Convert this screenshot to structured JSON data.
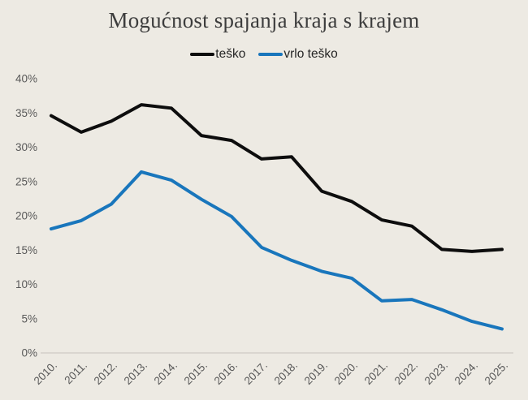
{
  "chart": {
    "title": "Mogućnost spajanja kraja s krajem"
  },
  "colors": {
    "background": "#EDEAE3",
    "axis_line": "#CFCBC4",
    "tick_label": "#595959",
    "title": "#3D3D3D"
  },
  "chart_data": {
    "type": "line",
    "title": "Mogućnost spajanja kraja s krajem",
    "categories": [
      "2010.",
      "2011.",
      "2012.",
      "2013.",
      "2014.",
      "2015.",
      "2016.",
      "2017.",
      "2018.",
      "2019.",
      "2020.",
      "2021.",
      "2022.",
      "2023.",
      "2024.",
      "2025."
    ],
    "series": [
      {
        "name": "teško",
        "color": "#0D0D0D",
        "values": [
          34.6,
          32.2,
          33.8,
          36.2,
          35.7,
          31.7,
          31.0,
          28.3,
          28.6,
          23.6,
          22.1,
          19.4,
          18.5,
          15.1,
          14.8,
          15.1
        ]
      },
      {
        "name": "vrlo teško",
        "color": "#1976BC",
        "values": [
          18.1,
          19.3,
          21.7,
          26.4,
          25.2,
          22.4,
          19.9,
          15.4,
          13.5,
          11.9,
          10.9,
          7.6,
          7.8,
          6.3,
          4.6,
          3.5
        ]
      }
    ],
    "xlabel": "",
    "ylabel": "",
    "ylim": [
      0,
      40
    ],
    "ytick_step": 5,
    "ytick_format": "percent",
    "legend_position": "top",
    "grid": false
  }
}
